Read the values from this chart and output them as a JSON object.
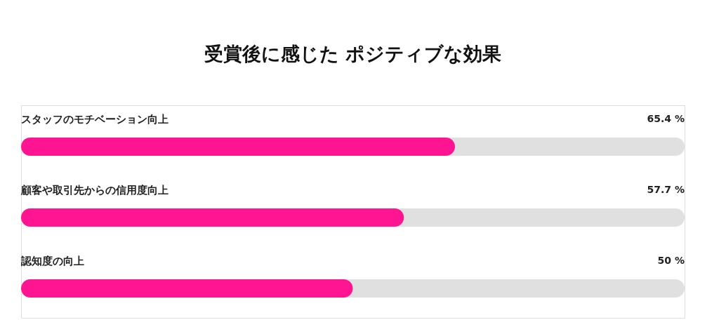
{
  "chart_data": {
    "type": "bar",
    "orientation": "horizontal",
    "title": "受賞後に感じた ポジティブな効果",
    "categories": [
      "スタッフのモチベーション向上",
      "顧客や取引先からの信用度向上",
      "認知度の向上"
    ],
    "series": [
      {
        "color": "#ff1592",
        "values": [
          65.4,
          57.7,
          50
        ],
        "value_labels": [
          "65.4 %",
          "57.7 %",
          "50 %"
        ]
      }
    ],
    "bands": [
      {
        "axis": "x",
        "from": 0,
        "to": 100,
        "color": "#e0e0e0"
      }
    ],
    "xlim": [
      0,
      100
    ],
    "tick_labels": "y"
  }
}
